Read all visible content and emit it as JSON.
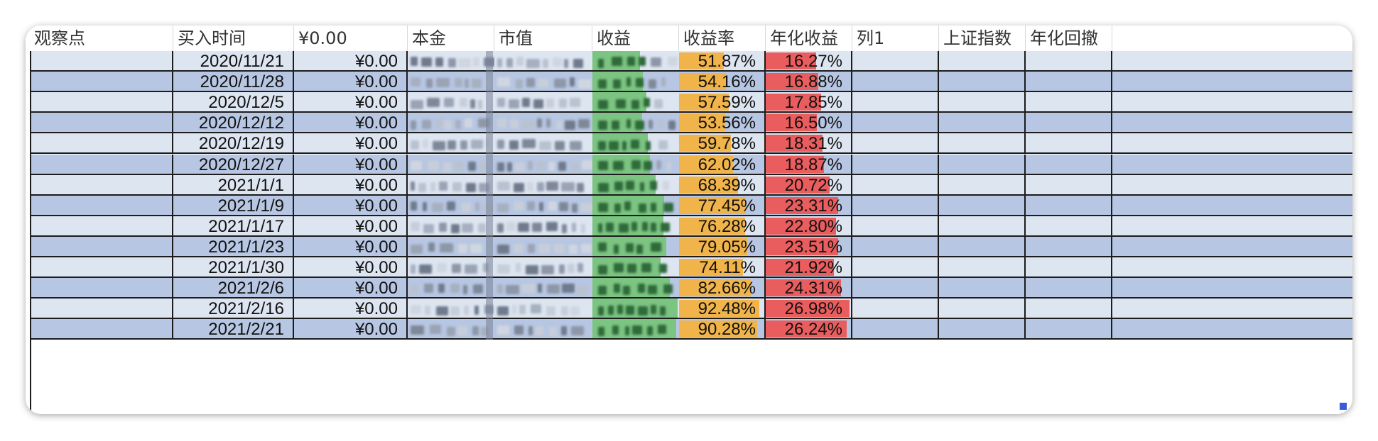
{
  "headers": [
    "观察点",
    "买入时间",
    "¥0.00",
    "本金",
    "市值",
    "收益",
    "收益率",
    "年化收益",
    "列1",
    "上证指数",
    "年化回撤"
  ],
  "rows": [
    {
      "date": "2020/11/21",
      "amount": "¥0.00",
      "rate": "51.87%",
      "rate_pct": 51.87,
      "annual": "16.27%",
      "annual_pct": 16.27,
      "gain_fill": 0.55
    },
    {
      "date": "2020/11/28",
      "amount": "¥0.00",
      "rate": "54.16%",
      "rate_pct": 54.16,
      "annual": "16.88%",
      "annual_pct": 16.88,
      "gain_fill": 0.58
    },
    {
      "date": "2020/12/5",
      "amount": "¥0.00",
      "rate": "57.59%",
      "rate_pct": 57.59,
      "annual": "17.85%",
      "annual_pct": 17.85,
      "gain_fill": 0.62
    },
    {
      "date": "2020/12/12",
      "amount": "¥0.00",
      "rate": "53.56%",
      "rate_pct": 53.56,
      "annual": "16.50%",
      "annual_pct": 16.5,
      "gain_fill": 0.57
    },
    {
      "date": "2020/12/19",
      "amount": "¥0.00",
      "rate": "59.78%",
      "rate_pct": 59.78,
      "annual": "18.31%",
      "annual_pct": 18.31,
      "gain_fill": 0.64
    },
    {
      "date": "2020/12/27",
      "amount": "¥0.00",
      "rate": "62.02%",
      "rate_pct": 62.02,
      "annual": "18.87%",
      "annual_pct": 18.87,
      "gain_fill": 0.66
    },
    {
      "date": "2021/1/1",
      "amount": "¥0.00",
      "rate": "68.39%",
      "rate_pct": 68.39,
      "annual": "20.72%",
      "annual_pct": 20.72,
      "gain_fill": 0.73
    },
    {
      "date": "2021/1/9",
      "amount": "¥0.00",
      "rate": "77.45%",
      "rate_pct": 77.45,
      "annual": "23.31%",
      "annual_pct": 23.31,
      "gain_fill": 0.83
    },
    {
      "date": "2021/1/17",
      "amount": "¥0.00",
      "rate": "76.28%",
      "rate_pct": 76.28,
      "annual": "22.80%",
      "annual_pct": 22.8,
      "gain_fill": 0.82
    },
    {
      "date": "2021/1/23",
      "amount": "¥0.00",
      "rate": "79.05%",
      "rate_pct": 79.05,
      "annual": "23.51%",
      "annual_pct": 23.51,
      "gain_fill": 0.85
    },
    {
      "date": "2021/1/30",
      "amount": "¥0.00",
      "rate": "74.11%",
      "rate_pct": 74.11,
      "annual": "21.92%",
      "annual_pct": 21.92,
      "gain_fill": 0.79
    },
    {
      "date": "2021/2/6",
      "amount": "¥0.00",
      "rate": "82.66%",
      "rate_pct": 82.66,
      "annual": "24.31%",
      "annual_pct": 24.31,
      "gain_fill": 0.89
    },
    {
      "date": "2021/2/16",
      "amount": "¥0.00",
      "rate": "92.48%",
      "rate_pct": 92.48,
      "annual": "26.98%",
      "annual_pct": 26.98,
      "gain_fill": 0.98
    },
    {
      "date": "2021/2/21",
      "amount": "¥0.00",
      "rate": "90.28%",
      "rate_pct": 90.28,
      "annual": "26.24%",
      "annual_pct": 26.24,
      "gain_fill": 0.97
    }
  ],
  "scale": {
    "rate_max": 100,
    "annual_max": 28
  },
  "colors": {
    "row_light": "#dde5f1",
    "row_dark": "#b7c6e2",
    "rate_bar": "#f1b44a",
    "annual_bar": "#ea5d5e",
    "gain_bar": "#7cc482"
  }
}
